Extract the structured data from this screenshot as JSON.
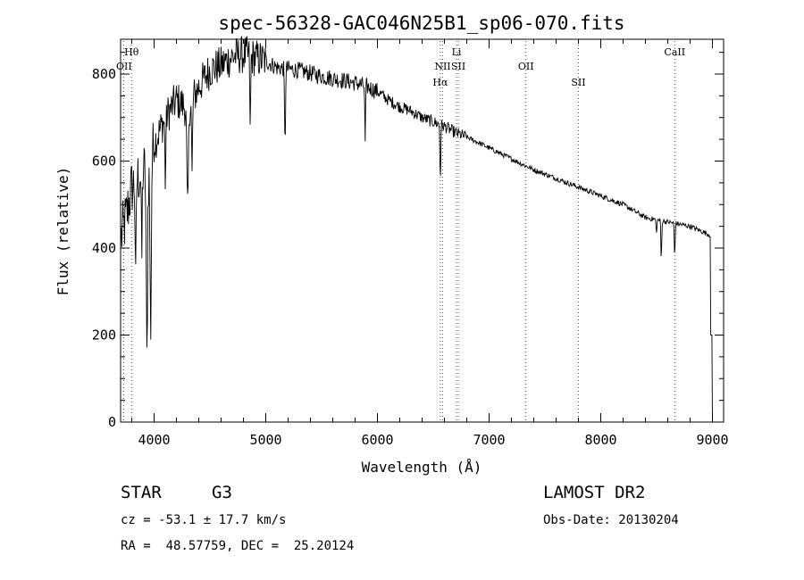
{
  "chart_data": {
    "type": "line",
    "title": "spec-56328-GAC046N25B1_sp06-070.fits",
    "xlabel": "Wavelength (Å)",
    "ylabel": "Flux (relative)",
    "xlim": [
      3700,
      9100
    ],
    "ylim": [
      0,
      880
    ],
    "xticks": [
      4000,
      5000,
      6000,
      7000,
      8000,
      9000
    ],
    "yticks": [
      0,
      200,
      400,
      600,
      800
    ],
    "x_tick_labels": [
      "4000",
      "5000",
      "6000",
      "7000",
      "8000",
      "9000"
    ],
    "y_tick_labels": [
      "0",
      "200",
      "400",
      "600",
      "800"
    ],
    "spectral_lines": [
      {
        "name": "Hθ",
        "wavelength": 3798,
        "label_level": 1
      },
      {
        "name": "OII",
        "wavelength": 3727,
        "label_level": 2
      },
      {
        "name": "Hα",
        "wavelength": 6563,
        "label_level": 3
      },
      {
        "name": "NII",
        "wavelength": 6584,
        "label_level": 2
      },
      {
        "name": "Li",
        "wavelength": 6708,
        "label_level": 1
      },
      {
        "name": "SII",
        "wavelength": 6725,
        "label_level": 2
      },
      {
        "name": "OII",
        "wavelength": 7330,
        "label_level": 2
      },
      {
        "name": "SII",
        "wavelength": 7800,
        "label_level": 3
      },
      {
        "name": "CaII",
        "wavelength": 8662,
        "label_level": 1
      }
    ],
    "continuum": [
      [
        3700,
        420
      ],
      [
        3750,
        470
      ],
      [
        3800,
        540
      ],
      [
        3850,
        560
      ],
      [
        3900,
        580
      ],
      [
        3950,
        570
      ],
      [
        4000,
        640
      ],
      [
        4100,
        700
      ],
      [
        4200,
        740
      ],
      [
        4300,
        720
      ],
      [
        4400,
        770
      ],
      [
        4500,
        810
      ],
      [
        4600,
        820
      ],
      [
        4700,
        840
      ],
      [
        4800,
        845
      ],
      [
        4900,
        838
      ],
      [
        5000,
        830
      ],
      [
        5100,
        815
      ],
      [
        5200,
        812
      ],
      [
        5300,
        808
      ],
      [
        5400,
        802
      ],
      [
        5500,
        795
      ],
      [
        5600,
        790
      ],
      [
        5700,
        785
      ],
      [
        5800,
        780
      ],
      [
        5900,
        772
      ],
      [
        6000,
        760
      ],
      [
        6100,
        740
      ],
      [
        6200,
        725
      ],
      [
        6300,
        715
      ],
      [
        6400,
        700
      ],
      [
        6500,
        690
      ],
      [
        6600,
        680
      ],
      [
        6700,
        665
      ],
      [
        6800,
        655
      ],
      [
        6900,
        643
      ],
      [
        7000,
        630
      ],
      [
        7200,
        605
      ],
      [
        7400,
        580
      ],
      [
        7600,
        560
      ],
      [
        7800,
        540
      ],
      [
        8000,
        520
      ],
      [
        8200,
        500
      ],
      [
        8400,
        470
      ],
      [
        8600,
        460
      ],
      [
        8800,
        450
      ],
      [
        8980,
        430
      ],
      [
        9000,
        0
      ]
    ],
    "absorption_features": [
      {
        "center": 3935,
        "depth": 430,
        "width": 8
      },
      {
        "center": 3969,
        "depth": 380,
        "width": 8
      },
      {
        "center": 3835,
        "depth": 250,
        "width": 6
      },
      {
        "center": 3889,
        "depth": 200,
        "width": 6
      },
      {
        "center": 4101,
        "depth": 150,
        "width": 6
      },
      {
        "center": 4300,
        "depth": 240,
        "width": 10
      },
      {
        "center": 4340,
        "depth": 180,
        "width": 6
      },
      {
        "center": 4861,
        "depth": 190,
        "width": 5
      },
      {
        "center": 5172,
        "depth": 180,
        "width": 6
      },
      {
        "center": 5890,
        "depth": 130,
        "width": 5
      },
      {
        "center": 6563,
        "depth": 130,
        "width": 5
      },
      {
        "center": 8498,
        "depth": 40,
        "width": 4
      },
      {
        "center": 8542,
        "depth": 95,
        "width": 5
      },
      {
        "center": 8662,
        "depth": 80,
        "width": 5
      }
    ]
  },
  "info": {
    "object_type": "STAR",
    "subclass": "G3",
    "survey": "LAMOST DR2",
    "cz": "cz = -53.1 ± 17.7 km/s",
    "obs_date": "Obs-Date: 20130204",
    "coords": "RA =  48.57759, DEC =  25.20124"
  }
}
